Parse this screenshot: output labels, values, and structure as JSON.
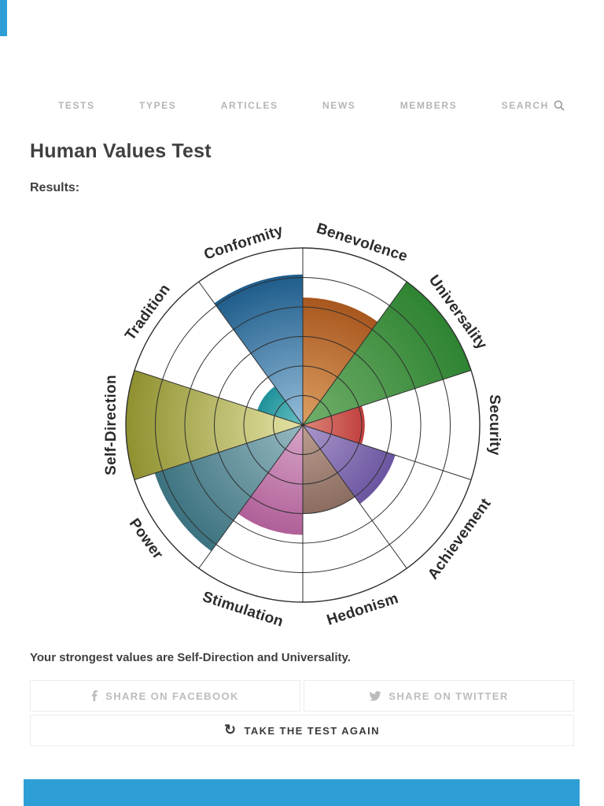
{
  "nav": {
    "items": [
      {
        "label": "TESTS"
      },
      {
        "label": "TYPES"
      },
      {
        "label": "ARTICLES"
      },
      {
        "label": "NEWS"
      },
      {
        "label": "MEMBERS"
      }
    ],
    "search": {
      "label": "SEARCH"
    }
  },
  "page": {
    "title": "Human Values Test",
    "results_label": "Results:",
    "summary": "Your strongest values are Self-Direction and Universality."
  },
  "actions": {
    "share_facebook": "SHARE ON FACEBOOK",
    "share_twitter": "SHARE ON TWITTER",
    "retake": "TAKE THE TEST AGAIN"
  },
  "colors": {
    "accent_blue": "#2e9fd6",
    "title_text": "#3f3f3f",
    "nav_text": "#b5b5b5",
    "muted_button_text": "#bcbcbc",
    "dark_button_text": "#3a3a3a"
  },
  "chart_data": {
    "type": "polar-sector-wheel",
    "title": "Human Values Test results wheel",
    "categories": [
      "Benevolence",
      "Universality",
      "Security",
      "Achievement",
      "Hedonism",
      "Stimulation",
      "Power",
      "Self-Direction",
      "Tradition",
      "Conformity"
    ],
    "values": [
      72,
      100,
      35,
      55,
      50,
      62,
      88,
      100,
      27,
      85
    ],
    "value_range": [
      0,
      100
    ],
    "start_angle_deg": 0,
    "sector_width_deg": 36,
    "rings": 6,
    "grid_on": true,
    "colors": [
      {
        "dark": "#a8571e",
        "light": "#d99a5e"
      },
      {
        "dark": "#2e8432",
        "light": "#6cab66"
      },
      {
        "dark": "#c13f3f",
        "light": "#da8072"
      },
      {
        "dark": "#6b55a1",
        "light": "#a492c6"
      },
      {
        "dark": "#8a6c60",
        "light": "#b89a8d"
      },
      {
        "dark": "#b05f98",
        "light": "#d4a0c4"
      },
      {
        "dark": "#3c7280",
        "light": "#8fb3bb"
      },
      {
        "dark": "#8f9130",
        "light": "#dedd9d"
      },
      {
        "dark": "#1f9199",
        "light": "#62bcc0"
      },
      {
        "dark": "#1e5c8b",
        "light": "#8cb6d4"
      }
    ],
    "grid_color": "#2f2f2f",
    "label_color": "#2b2b2b"
  }
}
